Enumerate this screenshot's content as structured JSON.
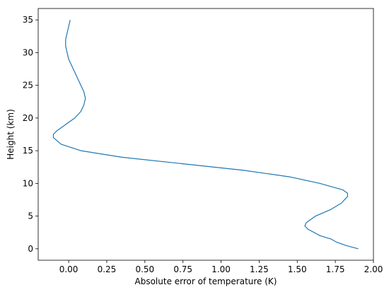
{
  "chart_data": {
    "type": "line",
    "xlabel": "Absolute error of temperature (K)",
    "ylabel": "Height (km)",
    "x": [
      1.9,
      1.82,
      1.76,
      1.72,
      1.65,
      1.57,
      1.55,
      1.56,
      1.62,
      1.72,
      1.79,
      1.83,
      1.83,
      1.8,
      1.65,
      1.45,
      1.15,
      0.75,
      0.35,
      0.08,
      -0.05,
      -0.1,
      -0.1,
      -0.08,
      -0.02,
      0.04,
      0.08,
      0.1,
      0.11,
      0.1,
      0.08,
      0.06,
      0.04,
      0.02,
      0.0,
      -0.01,
      -0.02,
      -0.02,
      -0.01,
      0.0,
      0.01
    ],
    "series": [
      {
        "color": "#1f77b4",
        "values": [
          0,
          0.5,
          1,
          1.5,
          2,
          3,
          3.5,
          4,
          5,
          6,
          7,
          8,
          8.5,
          9,
          10,
          11,
          12,
          13,
          14,
          15,
          16,
          17,
          17.5,
          18,
          19,
          20,
          21,
          22,
          23,
          24,
          25,
          26,
          27,
          28,
          29,
          30,
          31,
          32,
          33,
          34,
          35
        ]
      }
    ],
    "xlim": [
      -0.2,
      2.0
    ],
    "ylim": [
      -1.75,
      36.75
    ],
    "xticks": [
      {
        "value": 0,
        "label": "0.00"
      },
      {
        "value": 0.25,
        "label": "0.25"
      },
      {
        "value": 0.5,
        "label": "0.50"
      },
      {
        "value": 0.75,
        "label": "0.75"
      },
      {
        "value": 1,
        "label": "1.00"
      },
      {
        "value": 1.25,
        "label": "1.25"
      },
      {
        "value": 1.5,
        "label": "1.50"
      },
      {
        "value": 1.75,
        "label": "1.75"
      },
      {
        "value": 2,
        "label": "2.00"
      }
    ],
    "yticks": [
      0,
      5,
      10,
      15,
      20,
      25,
      30,
      35
    ]
  }
}
